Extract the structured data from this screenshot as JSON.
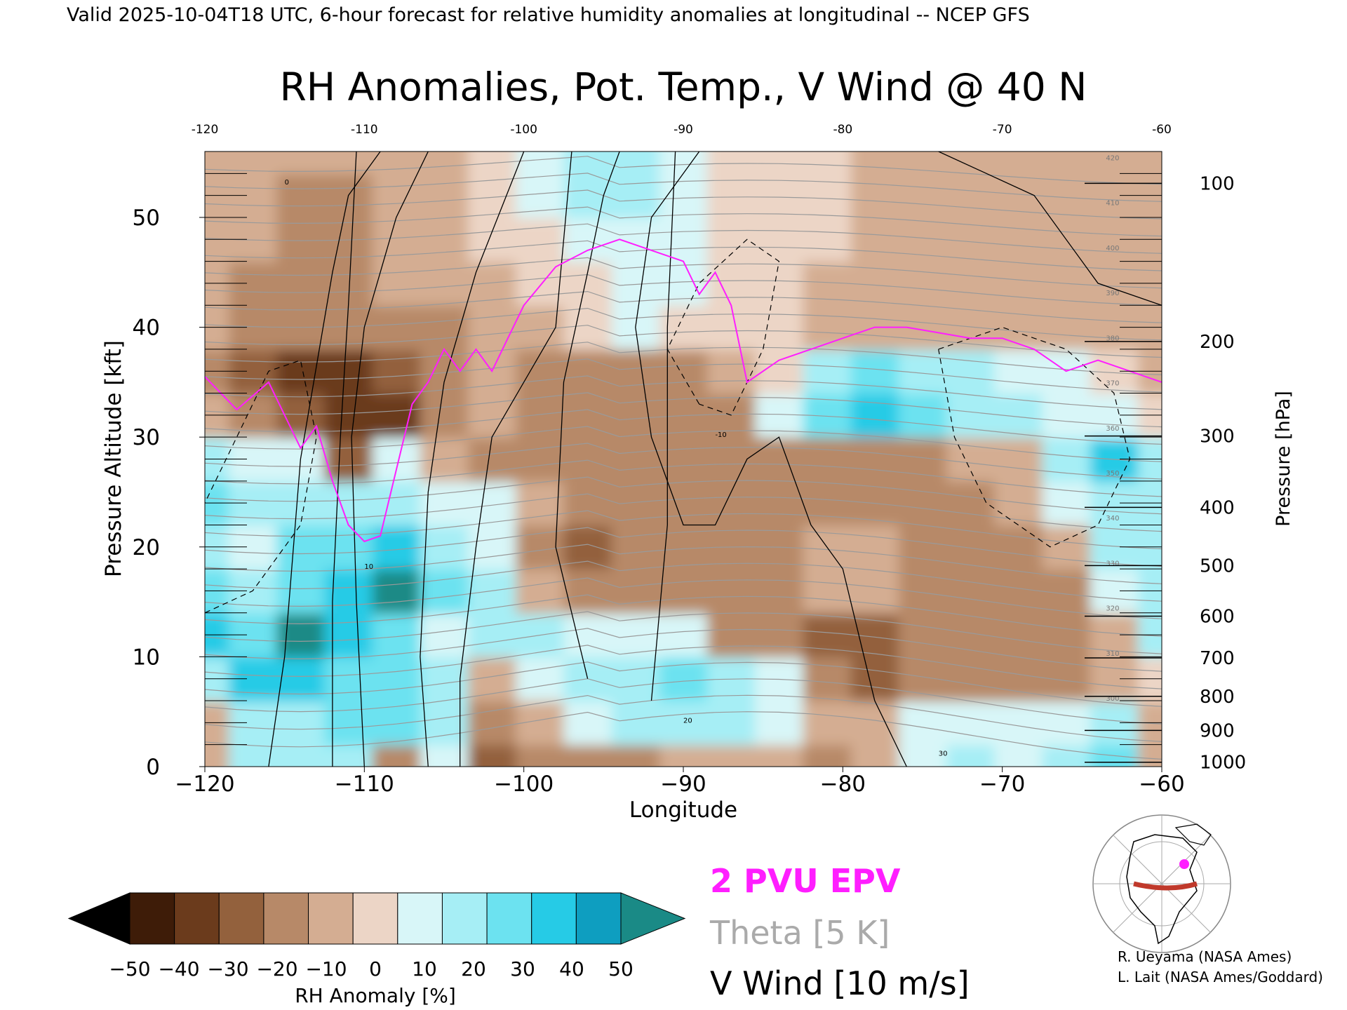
{
  "header": {
    "valid_line": "Valid 2025-10-04T18 UTC, 6-hour forecast for relative humidity anomalies at longitudinal -- NCEP GFS"
  },
  "chart_data": {
    "type": "heatmap",
    "title": "RH Anomalies, Pot. Temp., V Wind @ 40 N",
    "xlabel": "Longitude",
    "ylabel_left": "Pressure Altitude [kft]",
    "ylabel_right": "Pressure [hPa]",
    "xlim": [
      -120,
      -60
    ],
    "ylim": [
      0,
      56
    ],
    "x_ticks": [
      -120,
      -110,
      -100,
      -90,
      -80,
      -70,
      -60
    ],
    "x_tick_labels": [
      "−120",
      "−110",
      "−100",
      "−90",
      "−80",
      "−70",
      "−60"
    ],
    "top_tick_labels": [
      "-120",
      "-110",
      "-100",
      "-90",
      "-80",
      "-70",
      "-60"
    ],
    "y_ticks": [
      0,
      10,
      20,
      30,
      40,
      50
    ],
    "y_tick_labels": [
      "0",
      "10",
      "20",
      "30",
      "40",
      "50"
    ],
    "pressure_ticks": [
      {
        "kft": 0.4,
        "label": "1000"
      },
      {
        "kft": 3.3,
        "label": "900"
      },
      {
        "kft": 6.4,
        "label": "800"
      },
      {
        "kft": 9.9,
        "label": "700"
      },
      {
        "kft": 13.7,
        "label": "600"
      },
      {
        "kft": 18.3,
        "label": "500"
      },
      {
        "kft": 23.6,
        "label": "400"
      },
      {
        "kft": 30.1,
        "label": "300"
      },
      {
        "kft": 38.7,
        "label": "200"
      },
      {
        "kft": 53.1,
        "label": "100"
      }
    ],
    "colorbar": {
      "label": "RH Anomaly [%]",
      "ticks": [
        "−50",
        "−40",
        "−30",
        "−20",
        "−10",
        "0",
        "10",
        "20",
        "30",
        "40",
        "50"
      ],
      "colors": [
        "#3e1c08",
        "#6b3b1c",
        "#93613d",
        "#b78968",
        "#d4ad92",
        "#ecd5c6",
        "#d8f6f8",
        "#a6eef5",
        "#6ce2f0",
        "#26cbe6",
        "#0e9ec0"
      ],
      "under_color": "#000000",
      "over_color": "#1a8a86"
    },
    "legend": [
      {
        "label": "2 PVU EPV",
        "color": "#ff1eff"
      },
      {
        "label": "Theta [5 K]",
        "color": "#aaaaaa"
      },
      {
        "label": "V Wind [10 m/s]",
        "color": "#000000"
      }
    ],
    "rh_anomaly_grid": {
      "x": [
        -120,
        -117,
        -114,
        -111,
        -108,
        -105,
        -102,
        -99,
        -96,
        -93,
        -90,
        -87,
        -84,
        -81,
        -78,
        -75,
        -72,
        -69,
        -66,
        -63,
        -60
      ],
      "y": [
        0,
        4,
        8,
        12,
        16,
        20,
        24,
        28,
        32,
        36,
        40,
        44,
        48,
        52,
        56
      ],
      "values": [
        [
          -10,
          20,
          20,
          20,
          -20,
          10,
          -30,
          -20,
          -20,
          -15,
          -10,
          -10,
          -10,
          -15,
          -10,
          10,
          20,
          10,
          20,
          30,
          -5
        ],
        [
          -5,
          20,
          20,
          30,
          30,
          20,
          -20,
          -10,
          10,
          20,
          20,
          20,
          10,
          -10,
          -5,
          15,
          10,
          10,
          15,
          20,
          -5
        ],
        [
          20,
          40,
          40,
          30,
          30,
          20,
          -10,
          10,
          20,
          25,
          30,
          20,
          10,
          -20,
          -30,
          -20,
          -20,
          -20,
          -15,
          -10,
          5
        ],
        [
          40,
          30,
          50,
          40,
          30,
          10,
          20,
          20,
          10,
          10,
          10,
          -20,
          -20,
          -25,
          -25,
          -20,
          -15,
          -20,
          -20,
          -10,
          20
        ],
        [
          30,
          25,
          30,
          40,
          50,
          30,
          20,
          -10,
          -20,
          -20,
          -15,
          -20,
          -15,
          -10,
          -10,
          -15,
          -20,
          -20,
          -15,
          10,
          25
        ],
        [
          20,
          15,
          30,
          30,
          40,
          25,
          10,
          -15,
          -25,
          -15,
          -20,
          -20,
          -20,
          -10,
          -10,
          -15,
          -15,
          -20,
          -10,
          20,
          20
        ],
        [
          30,
          20,
          25,
          20,
          20,
          10,
          10,
          -10,
          -20,
          -20,
          -20,
          -20,
          -20,
          -20,
          -20,
          -15,
          -15,
          -10,
          15,
          20,
          20
        ],
        [
          20,
          15,
          10,
          -30,
          15,
          -10,
          -15,
          -15,
          -20,
          -15,
          -20,
          -20,
          -20,
          -15,
          -15,
          -20,
          -10,
          -5,
          25,
          45,
          20
        ],
        [
          -10,
          -20,
          -30,
          -40,
          -35,
          -20,
          -10,
          -20,
          -20,
          -20,
          -20,
          -15,
          10,
          30,
          40,
          30,
          25,
          20,
          15,
          15,
          5
        ],
        [
          -20,
          -30,
          -40,
          -35,
          -30,
          -20,
          -10,
          -20,
          -20,
          -20,
          -15,
          -10,
          5,
          20,
          30,
          25,
          25,
          15,
          10,
          0,
          -10
        ],
        [
          -10,
          -15,
          -20,
          -20,
          -20,
          -15,
          -10,
          -5,
          5,
          10,
          5,
          0,
          0,
          -5,
          -10,
          -10,
          -10,
          -10,
          -10,
          -10,
          -10
        ],
        [
          -10,
          -15,
          -15,
          -15,
          -10,
          -10,
          -5,
          0,
          5,
          10,
          10,
          5,
          0,
          -5,
          -5,
          -5,
          -5,
          -5,
          -5,
          -5,
          -10
        ],
        [
          -10,
          -10,
          -15,
          -15,
          -10,
          -5,
          0,
          5,
          15,
          15,
          10,
          5,
          0,
          0,
          -5,
          -5,
          -5,
          -5,
          -5,
          -5,
          -10
        ],
        [
          -10,
          -10,
          -15,
          -15,
          -10,
          -5,
          0,
          10,
          20,
          20,
          15,
          5,
          0,
          0,
          -5,
          -5,
          -5,
          -5,
          -5,
          -5,
          -10
        ],
        [
          -5,
          -5,
          -10,
          -10,
          -10,
          -5,
          0,
          10,
          20,
          20,
          15,
          5,
          0,
          0,
          -5,
          -5,
          -5,
          -5,
          -5,
          -5,
          -5
        ]
      ]
    },
    "epv_2pvu": {
      "x": [
        -120,
        -119,
        -118,
        -116,
        -115,
        -114,
        -113,
        -112,
        -111,
        -110,
        -109,
        -108,
        -107,
        -106,
        -105,
        -104,
        -103,
        -102,
        -101,
        -100,
        -98,
        -96,
        -94,
        -92,
        -90,
        -89,
        -88,
        -87,
        -86,
        -85,
        -84,
        -82,
        -80,
        -78,
        -76,
        -74,
        -72,
        -70,
        -68,
        -66,
        -64,
        -62,
        -60
      ],
      "y": [
        35.5,
        34,
        32.5,
        35,
        32,
        29,
        31,
        26,
        22,
        20.5,
        21,
        27,
        33,
        35,
        38,
        36,
        38,
        36,
        39,
        42,
        45.5,
        47,
        48,
        47,
        46,
        43,
        45,
        42,
        35,
        36,
        37,
        38,
        39,
        40,
        40,
        39.5,
        39,
        39,
        38,
        36,
        37,
        36,
        35
      ]
    },
    "theta_contours": {
      "interval_K": 5,
      "labels": [
        "300",
        "310",
        "320",
        "330",
        "340",
        "350",
        "360",
        "370",
        "380",
        "390",
        "400",
        "410",
        "420"
      ]
    },
    "v_wind_contours": {
      "interval_mps": 10,
      "labels": [
        "0",
        "10",
        "20",
        "30",
        "-10"
      ]
    }
  },
  "inset_map": {
    "line_color": "#c0392b",
    "marker_color": "#ff1eff"
  },
  "credits": {
    "line1": "R. Ueyama (NASA Ames)",
    "line2": "L. Lait (NASA Ames/Goddard)"
  }
}
